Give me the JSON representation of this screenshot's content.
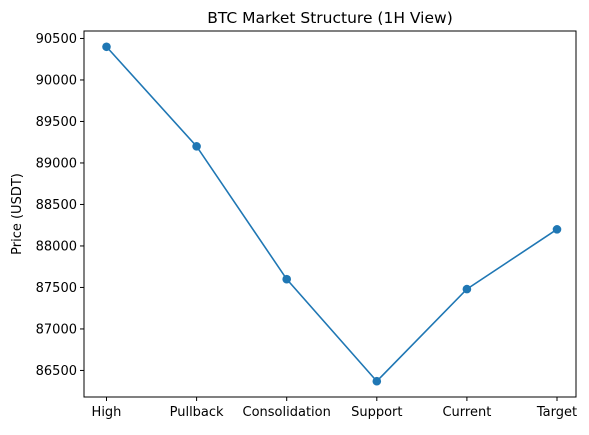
{
  "chart_data": {
    "type": "line",
    "title": "BTC Market Structure (1H View)",
    "xlabel": "",
    "ylabel": "Price (USDT)",
    "categories": [
      "High",
      "Pullback",
      "Consolidation",
      "Support",
      "Current",
      "Target"
    ],
    "series": [
      {
        "values": [
          90400,
          89200,
          87600,
          86370,
          87480,
          88200
        ],
        "color": "#1f77b4",
        "marker": "circle"
      }
    ],
    "yticks": [
      86500,
      87000,
      87500,
      88000,
      88500,
      89000,
      89500,
      90000,
      90500
    ],
    "ylim": [
      86180,
      90590
    ],
    "grid": false,
    "legend": "none"
  }
}
